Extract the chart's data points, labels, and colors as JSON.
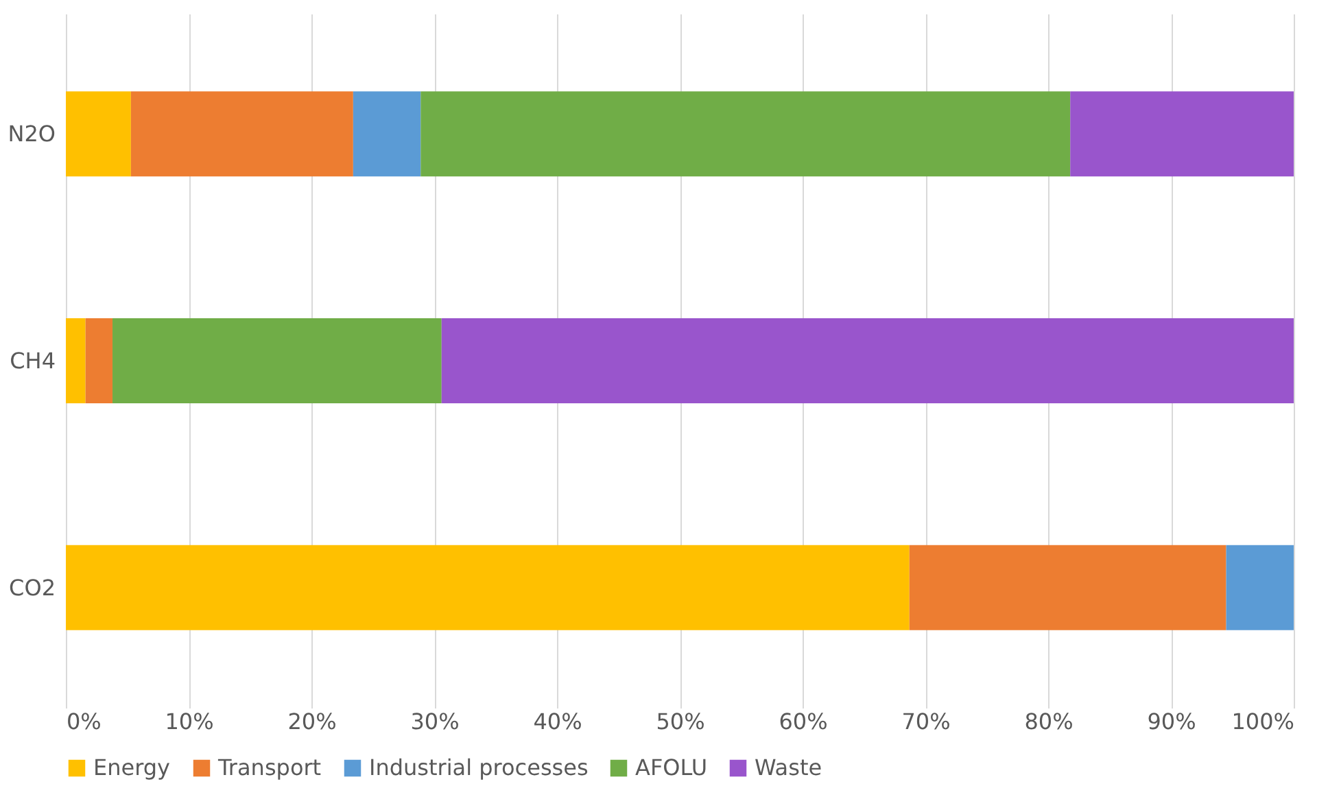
{
  "chart_data": {
    "type": "bar",
    "orientation": "horizontal",
    "stacked": true,
    "categories": [
      "N2O",
      "CH4",
      "CO2"
    ],
    "series": [
      {
        "name": "Energy",
        "color": "#ffc000",
        "values": [
          5.3,
          1.6,
          68.7
        ]
      },
      {
        "name": "Transport",
        "color": "#ed7d31",
        "values": [
          18.1,
          2.2,
          25.8
        ]
      },
      {
        "name": "Industrial processes",
        "color": "#5b9bd5",
        "values": [
          5.5,
          null,
          5.5
        ]
      },
      {
        "name": "AFOLU",
        "color": "#70ad47",
        "values": [
          52.9,
          26.8,
          null
        ]
      },
      {
        "name": "Waste",
        "color": "#9955cc",
        "values": [
          18.2,
          69.4,
          null
        ]
      }
    ],
    "xlim": [
      0,
      100
    ],
    "xticks": [
      {
        "value": 0,
        "label": "0%"
      },
      {
        "value": 10,
        "label": "10%"
      },
      {
        "value": 20,
        "label": "20%"
      },
      {
        "value": 30,
        "label": "30%"
      },
      {
        "value": 40,
        "label": "40%"
      },
      {
        "value": 50,
        "label": "50%"
      },
      {
        "value": 60,
        "label": "60%"
      },
      {
        "value": 70,
        "label": "70%"
      },
      {
        "value": 80,
        "label": "80%"
      },
      {
        "value": 90,
        "label": "90%"
      },
      {
        "value": 100,
        "label": "100%"
      }
    ],
    "grid": "x",
    "legend": "bottom"
  }
}
